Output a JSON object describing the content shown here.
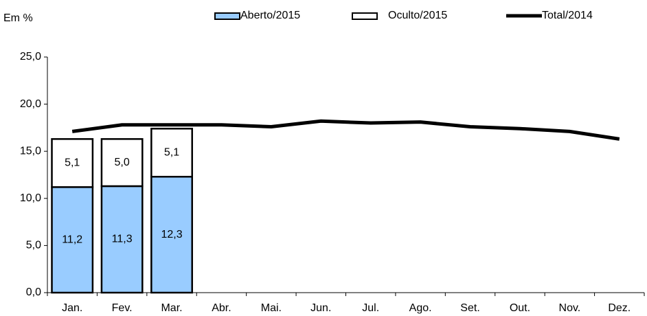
{
  "chart_data": {
    "type": "bar",
    "stacked": true,
    "y_label": "Em %",
    "categories": [
      "Jan.",
      "Fev.",
      "Mar.",
      "Abr.",
      "Mai.",
      "Jun.",
      "Jul.",
      "Ago.",
      "Set.",
      "Out.",
      "Nov.",
      "Dez."
    ],
    "series": [
      {
        "name": "Aberto/2015",
        "type": "bar",
        "color": "#99ccff",
        "values": [
          11.2,
          11.3,
          12.3,
          null,
          null,
          null,
          null,
          null,
          null,
          null,
          null,
          null
        ],
        "value_labels": [
          "11,2",
          "11,3",
          "12,3",
          null,
          null,
          null,
          null,
          null,
          null,
          null,
          null,
          null
        ]
      },
      {
        "name": "Oculto/2015",
        "type": "bar",
        "color": "#ffffff",
        "values": [
          5.1,
          5.0,
          5.1,
          null,
          null,
          null,
          null,
          null,
          null,
          null,
          null,
          null
        ],
        "value_labels": [
          "5,1",
          "5,0",
          "5,1",
          null,
          null,
          null,
          null,
          null,
          null,
          null,
          null,
          null
        ]
      },
      {
        "name": "Total/2014",
        "type": "line",
        "color": "#000000",
        "values": [
          17.1,
          17.8,
          17.8,
          17.8,
          17.6,
          18.2,
          18.0,
          18.1,
          17.6,
          17.4,
          17.1,
          16.3
        ]
      }
    ],
    "ylim": [
      0,
      25
    ],
    "yticks": [
      {
        "value": 0,
        "label": "0,0"
      },
      {
        "value": 5,
        "label": "5,0"
      },
      {
        "value": 10,
        "label": "10,0"
      },
      {
        "value": 15,
        "label": "15,0"
      },
      {
        "value": 20,
        "label": "20,0"
      },
      {
        "value": 25,
        "label": "25,0"
      }
    ],
    "grid": false
  }
}
